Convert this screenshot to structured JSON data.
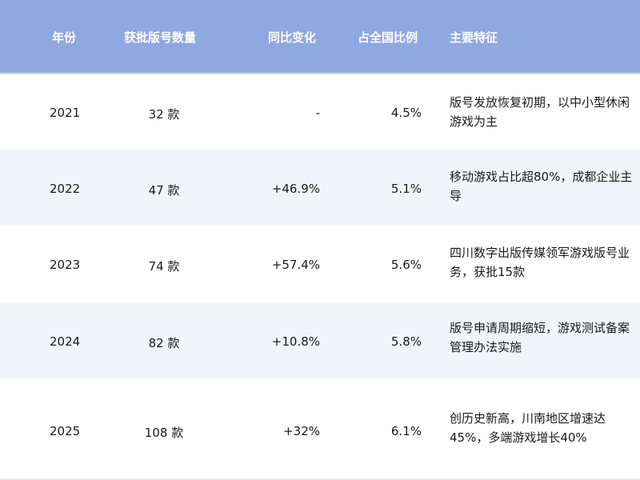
{
  "table": {
    "headers": [
      "年份",
      "获批版号数量",
      "同比变化",
      "占全国比例",
      "主要特征"
    ],
    "rows": [
      {
        "year": "2021",
        "count": "32 款",
        "yoy": "-",
        "share": "4.5%",
        "feature": "版号发放恢复初期，以中小型休闲游戏为主"
      },
      {
        "year": "2022",
        "count": "47 款",
        "yoy": "+46.9%",
        "share": "5.1%",
        "feature": "移动游戏占比超80%，成都企业主导"
      },
      {
        "year": "2023",
        "count": "74 款",
        "yoy": "+57.4%",
        "share": "5.6%",
        "feature": "四川数字出版传媒领军游戏版号业务，获批15款"
      },
      {
        "year": "2024",
        "count": "82 款",
        "yoy": "+10.8%",
        "share": "5.8%",
        "feature": "版号申请周期缩短，游戏测试备案管理办法实施"
      },
      {
        "year": "2025",
        "count": "108 款",
        "yoy": "+32%",
        "share": "6.1%",
        "feature": "创历史新高，川南地区增速达45%，多端游戏增长40%"
      }
    ]
  },
  "colors": {
    "header_bg": "#8fa8e0",
    "alt_row_bg": "#f1f5fb"
  }
}
